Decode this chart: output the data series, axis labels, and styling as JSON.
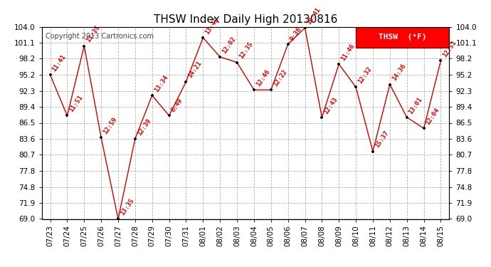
{
  "title": "THSW Index Daily High 20130816",
  "copyright": "Copyright 2013 Cartronics.com",
  "legend_label": "THSW  (°F)",
  "bg_color": "#ffffff",
  "plot_bg_color": "#ffffff",
  "grid_color": "#b0b0b0",
  "line_color": "#cc0000",
  "marker_color": "#000000",
  "label_color": "#cc0000",
  "ylim": [
    69.0,
    104.0
  ],
  "yticks": [
    69.0,
    71.9,
    74.8,
    77.8,
    80.7,
    83.6,
    86.5,
    89.4,
    92.3,
    95.2,
    98.2,
    101.1,
    104.0
  ],
  "dates": [
    "07/23",
    "07/24",
    "07/25",
    "07/26",
    "07/27",
    "07/28",
    "07/29",
    "07/30",
    "07/31",
    "08/01",
    "08/02",
    "08/03",
    "08/04",
    "08/05",
    "08/06",
    "08/07",
    "08/08",
    "08/09",
    "08/10",
    "08/11",
    "08/12",
    "08/13",
    "08/14",
    "08/15"
  ],
  "values": [
    95.2,
    87.8,
    100.5,
    83.8,
    69.0,
    83.6,
    91.5,
    87.8,
    94.0,
    102.0,
    98.5,
    97.5,
    92.5,
    92.5,
    100.8,
    103.8,
    87.5,
    97.2,
    93.0,
    81.3,
    93.5,
    87.5,
    85.5,
    97.8
  ],
  "time_labels": [
    "11:41",
    "11:51",
    "13:35",
    "12:59",
    "13:35",
    "12:39",
    "13:34",
    "6:49",
    "14:21",
    "13:45",
    "12:02",
    "12:35",
    "12:46",
    "12:22",
    "9:36",
    "10:41",
    "12:43",
    "11:46",
    "12:32",
    "15:37",
    "14:36",
    "13:01",
    "12:04",
    "12:51"
  ],
  "title_fontsize": 11,
  "axis_fontsize": 7.5,
  "label_fontsize": 6.5,
  "copyright_fontsize": 7,
  "legend_fontsize": 8
}
